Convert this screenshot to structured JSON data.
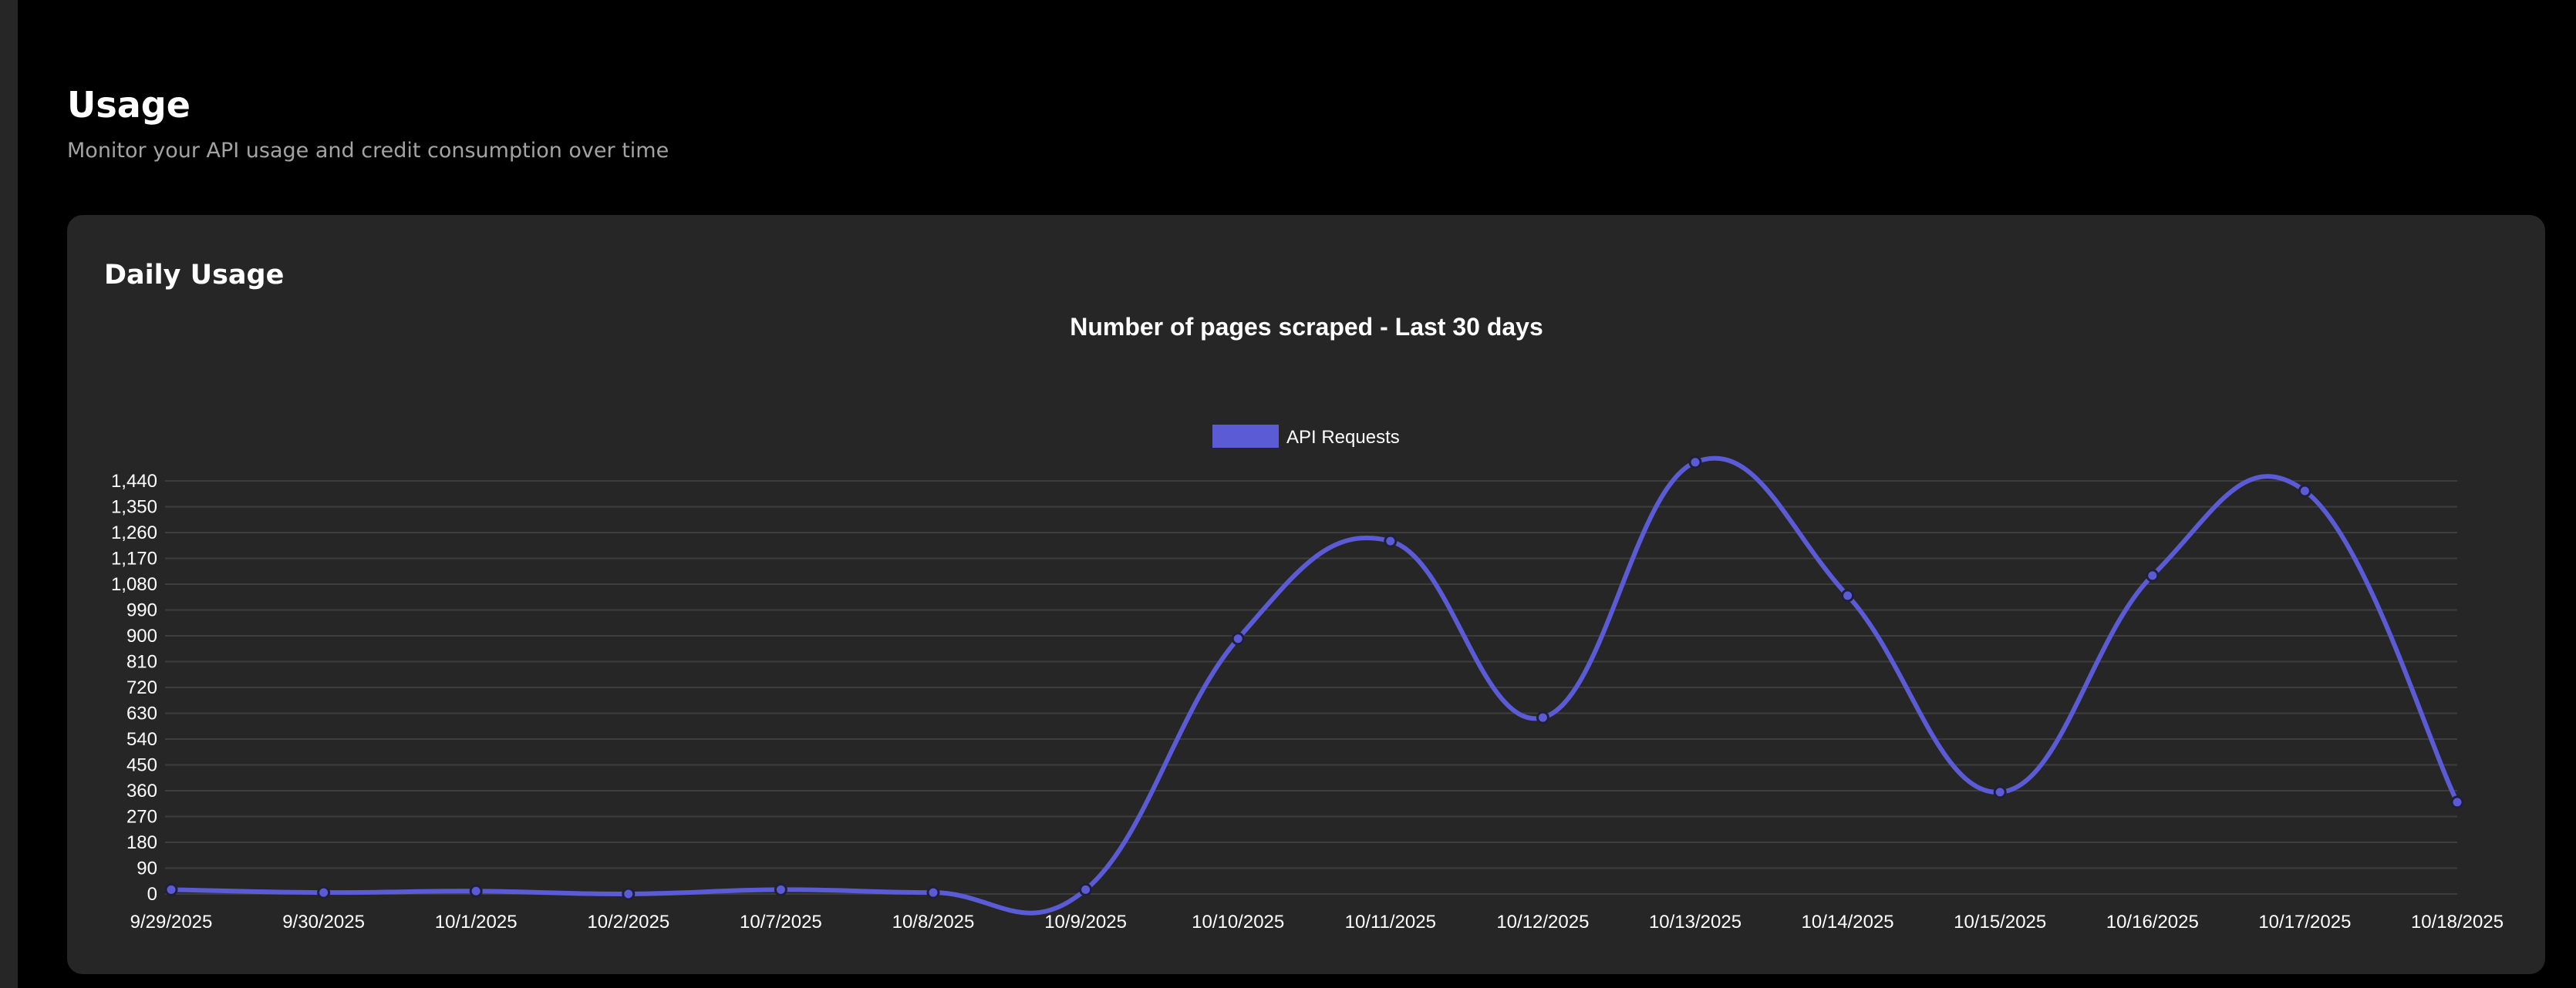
{
  "page": {
    "title": "Usage",
    "subtitle": "Monitor your API usage and credit consumption over time"
  },
  "card": {
    "title": "Daily Usage"
  },
  "colors": {
    "background": "#000000",
    "card": "#262626",
    "series": "#5b5bd6",
    "grid": "#3d3d3d",
    "text": "#ffffff",
    "muted": "#a3a3a3"
  },
  "chart_data": {
    "type": "line",
    "title": "Number of pages scraped - Last 30 days",
    "xlabel": "",
    "ylabel": "",
    "categories": [
      "9/29/2025",
      "9/30/2025",
      "10/1/2025",
      "10/2/2025",
      "10/7/2025",
      "10/8/2025",
      "10/9/2025",
      "10/10/2025",
      "10/11/2025",
      "10/12/2025",
      "10/13/2025",
      "10/14/2025",
      "10/15/2025",
      "10/16/2025",
      "10/17/2025",
      "10/18/2025"
    ],
    "series": [
      {
        "name": "API Requests",
        "color": "#5b5bd6",
        "values": [
          15,
          5,
          10,
          0,
          15,
          5,
          15,
          890,
          1230,
          615,
          1505,
          1040,
          355,
          1110,
          1405,
          320
        ]
      }
    ],
    "yticks": [
      "0",
      "90",
      "180",
      "270",
      "360",
      "450",
      "540",
      "630",
      "720",
      "810",
      "900",
      "990",
      "1,080",
      "1,170",
      "1,260",
      "1,350",
      "1,440"
    ],
    "ylim": [
      0,
      1440
    ],
    "grid": true,
    "legend_position": "top-center",
    "smooth": true
  }
}
